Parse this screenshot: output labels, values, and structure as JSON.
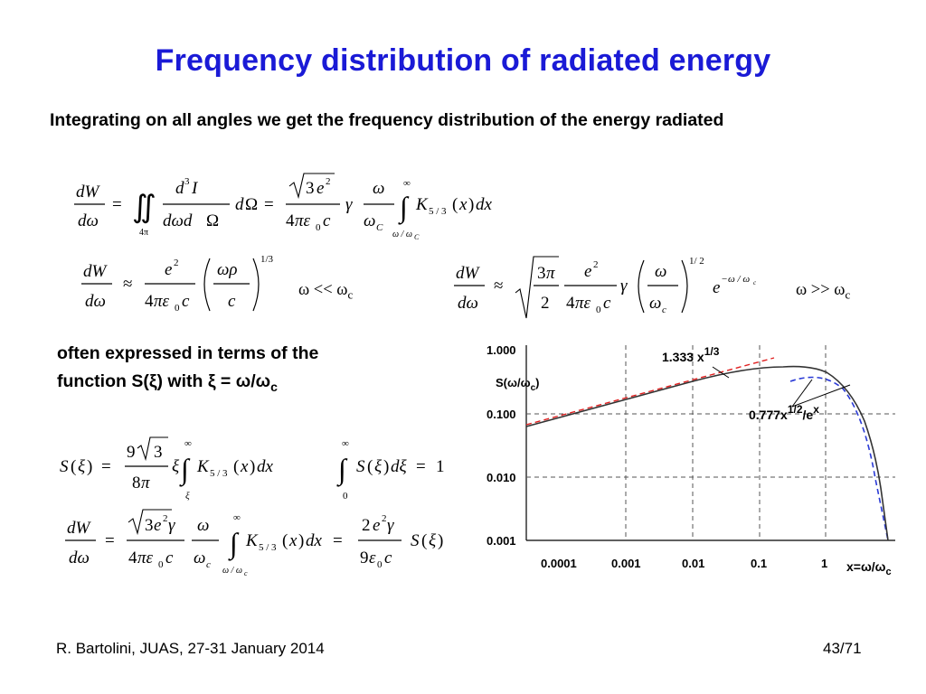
{
  "slide": {
    "title": "Frequency distribution of radiated energy",
    "intro": "Integrating on all angles we get the frequency distribution of the energy radiated",
    "cond_low_prefix": "ω << ω",
    "cond_low_sub": "c",
    "cond_high_prefix": "ω >> ω",
    "cond_high_sub": "c",
    "often_line1": "often expressed in terms of the",
    "often_line2": "function S(ξ) with ξ = ω/ω",
    "often_sub": "c",
    "footer_left": "R. Bartolini, JUAS, 27-31 January 2014",
    "footer_right": "43/71"
  },
  "graph": {
    "y_axis_label": "S(ω/ω",
    "y_axis_label_sub": "c",
    "y_axis_label_close": ")",
    "y_ticks": [
      "1.000",
      "0.100",
      "0.010",
      "0.001"
    ],
    "x_ticks": [
      "0.0001",
      "0.001",
      "0.01",
      "0.1",
      "1"
    ],
    "x_axis_label": "x=ω/ω",
    "x_axis_label_sub": "c",
    "annot_low": "1.333 x",
    "annot_low_exp": "1/3",
    "annot_high": "0.777x",
    "annot_high_exp": "1/2",
    "annot_high_tail": "/e",
    "annot_high_tail_exp": "x",
    "colors": {
      "exact": "#333333",
      "low_asymptote": "#e02020",
      "high_asymptote": "#2a3ad6",
      "grid": "#555555"
    }
  }
}
